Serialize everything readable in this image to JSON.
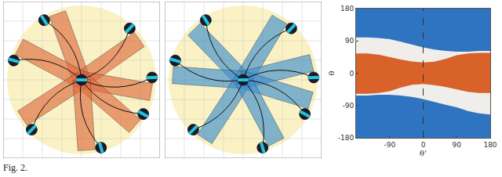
{
  "caption": "Fig. 2.",
  "diagrams": [
    {
      "color": "#df6b3f"
    },
    {
      "color": "#3f8fce"
    }
  ],
  "chart_data": {
    "type": "area",
    "x_label": "θ'",
    "y_label": "θ",
    "x": [
      -180,
      -150,
      -120,
      -90,
      -60,
      -30,
      0,
      30,
      60,
      90,
      120,
      150,
      180
    ],
    "bands": [
      {
        "color": "#2f74c0",
        "lower": [
          -180,
          -180,
          -180,
          -180,
          -180,
          -180,
          -180,
          -180,
          -180,
          -180,
          -180,
          -180,
          -180
        ],
        "upper": [
          180,
          180,
          180,
          180,
          180,
          180,
          180,
          180,
          180,
          180,
          180,
          180,
          180
        ]
      },
      {
        "color": "#efeeea",
        "lower": [
          -62,
          -62,
          -60,
          -60,
          -62,
          -66,
          -72,
          -80,
          -88,
          -95,
          -105,
          -112,
          -115
        ],
        "upper": [
          100,
          100,
          98,
          95,
          88,
          80,
          72,
          66,
          62,
          60,
          60,
          62,
          62
        ]
      },
      {
        "color": "#d9612a",
        "lower": [
          -57,
          -57,
          -55,
          -50,
          -40,
          -32,
          -30,
          -33,
          -38,
          -45,
          -52,
          -55,
          -55
        ],
        "upper": [
          55,
          55,
          52,
          45,
          38,
          33,
          30,
          32,
          40,
          50,
          55,
          57,
          57
        ]
      }
    ],
    "reference_line": {
      "x": 0,
      "line_style": "dashed"
    },
    "xlim": [
      -180,
      180
    ],
    "ylim": [
      -180,
      180
    ],
    "xticks": [
      -90,
      0,
      90,
      180
    ],
    "yticks": [
      -180,
      -90,
      0,
      90,
      180
    ],
    "grid": false
  }
}
